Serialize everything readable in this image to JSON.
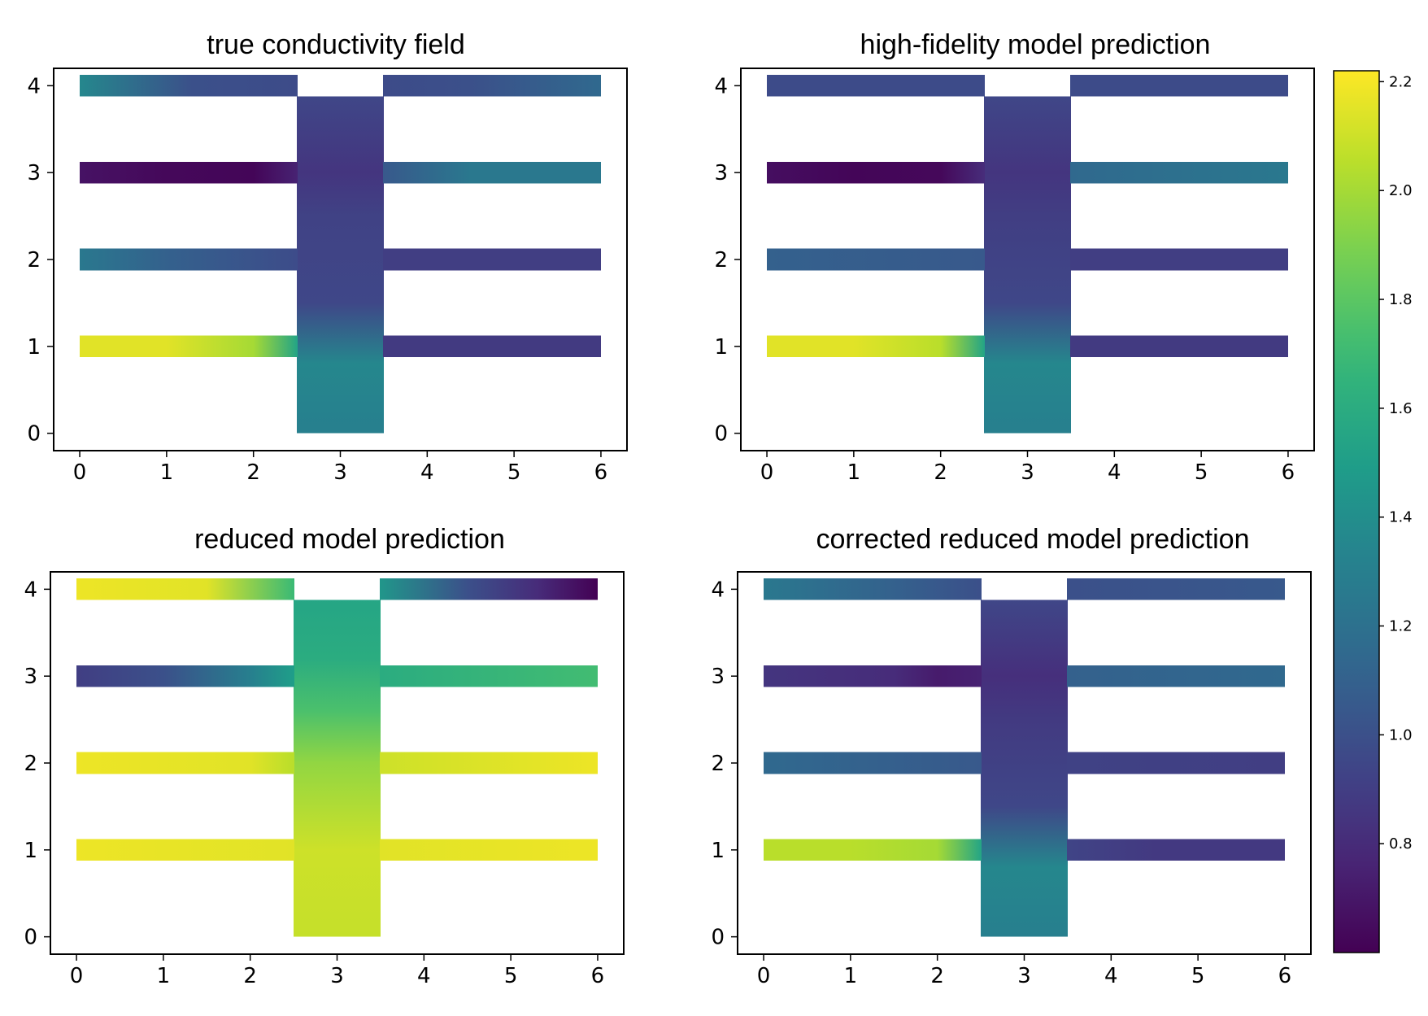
{
  "chart_data": {
    "type": "heatmap",
    "colormap": "viridis",
    "color_range": [
      0.6,
      2.22
    ],
    "colorbar": {
      "ticks": [
        0.8,
        1.0,
        1.2,
        1.4,
        1.6,
        1.8,
        2.0,
        2.2
      ],
      "tick_labels": [
        "0.8",
        "1.0",
        "1.2",
        "1.4",
        "1.6",
        "1.8",
        "2.0",
        "2.2"
      ]
    },
    "x_ticks": [
      "0",
      "1",
      "2",
      "3",
      "4",
      "5",
      "6"
    ],
    "y_ticks": [
      "0",
      "1",
      "2",
      "3",
      "4"
    ],
    "xlim": [
      -0.3,
      6.3
    ],
    "ylim": [
      -0.2,
      4.2
    ],
    "domain": {
      "description": "vertical trunk x 2.5-3.5 from y=0 to y=4, with horizontal branches of width 0.25 at y=1,2,3,4 extending to x=0 and x=6",
      "trunk": {
        "x": [
          2.5,
          3.5
        ],
        "y": [
          0,
          4
        ]
      },
      "branches": [
        {
          "y": 1,
          "x_left": [
            0,
            2.5
          ],
          "x_right": [
            3.5,
            6
          ]
        },
        {
          "y": 2,
          "x_left": [
            0,
            2.5
          ],
          "x_right": [
            3.5,
            6
          ]
        },
        {
          "y": 3,
          "x_left": [
            0,
            2.5
          ],
          "x_right": [
            3.5,
            6
          ]
        },
        {
          "y": 4,
          "x_left": [
            0,
            2.5
          ],
          "x_right": [
            3.5,
            6
          ]
        }
      ]
    },
    "panels": [
      {
        "title": "true conductivity field",
        "trunk": [
          [
            0,
            1.3
          ],
          [
            0.8,
            1.35
          ],
          [
            1.5,
            0.95
          ],
          [
            2.5,
            0.92
          ],
          [
            3.0,
            0.85
          ],
          [
            3.9,
            0.95
          ]
        ],
        "branches": [
          {
            "y": 1,
            "left": [
              [
                0,
                2.15
              ],
              [
                1.0,
                2.15
              ],
              [
                2.0,
                2.0
              ],
              [
                2.5,
                1.55
              ]
            ],
            "right": [
              [
                3.5,
                0.88
              ],
              [
                6,
                0.88
              ]
            ]
          },
          {
            "y": 2,
            "left": [
              [
                0,
                1.25
              ],
              [
                1.0,
                1.1
              ],
              [
                2.5,
                0.98
              ]
            ],
            "right": [
              [
                3.5,
                0.9
              ],
              [
                6,
                0.9
              ]
            ]
          },
          {
            "y": 3,
            "left": [
              [
                0,
                0.68
              ],
              [
                1.0,
                0.63
              ],
              [
                2.0,
                0.62
              ],
              [
                2.5,
                0.75
              ]
            ],
            "right": [
              [
                3.5,
                1.05
              ],
              [
                4.5,
                1.25
              ],
              [
                6,
                1.25
              ]
            ]
          },
          {
            "y": 4,
            "left": [
              [
                0,
                1.35
              ],
              [
                1.3,
                1.0
              ],
              [
                2.5,
                0.97
              ]
            ],
            "right": [
              [
                3.5,
                0.97
              ],
              [
                4.5,
                1.0
              ],
              [
                6,
                1.15
              ]
            ]
          }
        ]
      },
      {
        "title": "high-fidelity model prediction",
        "trunk": [
          [
            0,
            1.3
          ],
          [
            0.8,
            1.35
          ],
          [
            1.5,
            0.95
          ],
          [
            2.5,
            0.9
          ],
          [
            3.0,
            0.85
          ],
          [
            3.9,
            0.95
          ]
        ],
        "branches": [
          {
            "y": 1,
            "left": [
              [
                0,
                2.15
              ],
              [
                1.0,
                2.15
              ],
              [
                2.0,
                2.05
              ],
              [
                2.5,
                1.55
              ]
            ],
            "right": [
              [
                3.5,
                0.88
              ],
              [
                6,
                0.88
              ]
            ]
          },
          {
            "y": 2,
            "left": [
              [
                0,
                1.1
              ],
              [
                2.5,
                1.05
              ]
            ],
            "right": [
              [
                3.5,
                0.9
              ],
              [
                6,
                0.9
              ]
            ]
          },
          {
            "y": 3,
            "left": [
              [
                0,
                0.66
              ],
              [
                1.0,
                0.62
              ],
              [
                2.0,
                0.63
              ],
              [
                2.5,
                0.8
              ]
            ],
            "right": [
              [
                3.5,
                1.15
              ],
              [
                6,
                1.25
              ]
            ]
          },
          {
            "y": 4,
            "left": [
              [
                0,
                0.97
              ],
              [
                2.5,
                0.97
              ]
            ],
            "right": [
              [
                3.5,
                0.97
              ],
              [
                6,
                0.97
              ]
            ]
          }
        ]
      },
      {
        "title": "reduced model prediction",
        "trunk": [
          [
            0,
            2.08
          ],
          [
            1.0,
            2.1
          ],
          [
            2.0,
            1.95
          ],
          [
            2.6,
            1.75
          ],
          [
            3.2,
            1.6
          ],
          [
            3.9,
            1.55
          ]
        ],
        "branches": [
          {
            "y": 1,
            "left": [
              [
                0,
                2.18
              ],
              [
                2.5,
                2.15
              ]
            ],
            "right": [
              [
                3.5,
                2.15
              ],
              [
                6,
                2.18
              ]
            ]
          },
          {
            "y": 2,
            "left": [
              [
                0,
                2.18
              ],
              [
                2.0,
                2.15
              ],
              [
                2.5,
                2.05
              ]
            ],
            "right": [
              [
                3.5,
                2.1
              ],
              [
                6,
                2.18
              ]
            ]
          },
          {
            "y": 3,
            "left": [
              [
                0,
                0.9
              ],
              [
                1.0,
                1.0
              ],
              [
                2.0,
                1.3
              ],
              [
                2.5,
                1.5
              ]
            ],
            "right": [
              [
                3.5,
                1.6
              ],
              [
                6,
                1.72
              ]
            ]
          },
          {
            "y": 4,
            "left": [
              [
                0,
                2.18
              ],
              [
                1.5,
                2.15
              ],
              [
                2.5,
                1.7
              ]
            ],
            "right": [
              [
                3.5,
                1.45
              ],
              [
                4.5,
                1.0
              ],
              [
                5.3,
                0.8
              ],
              [
                6,
                0.6
              ]
            ]
          }
        ]
      },
      {
        "title": "corrected reduced model prediction",
        "trunk": [
          [
            0,
            1.3
          ],
          [
            0.8,
            1.35
          ],
          [
            1.5,
            0.95
          ],
          [
            2.5,
            0.88
          ],
          [
            3.0,
            0.82
          ],
          [
            3.9,
            0.95
          ]
        ],
        "branches": [
          {
            "y": 1,
            "left": [
              [
                0,
                2.05
              ],
              [
                1.0,
                2.05
              ],
              [
                2.0,
                2.0
              ],
              [
                2.5,
                1.55
              ]
            ],
            "right": [
              [
                3.5,
                0.93
              ],
              [
                4.5,
                0.87
              ],
              [
                6,
                0.87
              ]
            ]
          },
          {
            "y": 2,
            "left": [
              [
                0,
                1.15
              ],
              [
                2.5,
                1.05
              ]
            ],
            "right": [
              [
                3.5,
                0.92
              ],
              [
                6,
                0.9
              ]
            ]
          },
          {
            "y": 3,
            "left": [
              [
                0,
                0.85
              ],
              [
                1.5,
                0.8
              ],
              [
                2.0,
                0.72
              ],
              [
                2.5,
                0.75
              ]
            ],
            "right": [
              [
                3.5,
                1.1
              ],
              [
                6,
                1.15
              ]
            ]
          },
          {
            "y": 4,
            "left": [
              [
                0,
                1.25
              ],
              [
                1.5,
                1.1
              ],
              [
                2.5,
                1.0
              ]
            ],
            "right": [
              [
                3.5,
                1.0
              ],
              [
                6,
                1.05
              ]
            ]
          }
        ]
      }
    ]
  }
}
